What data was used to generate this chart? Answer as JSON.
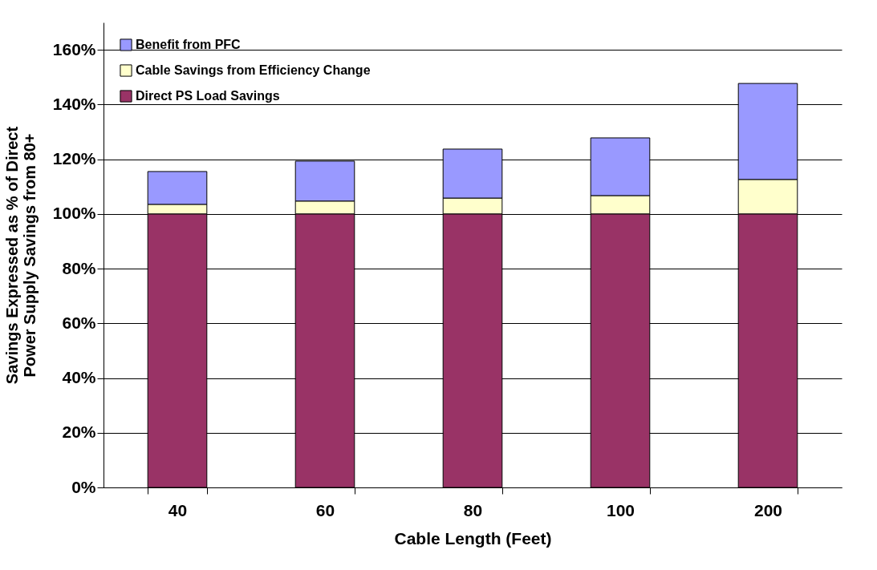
{
  "chart_data": {
    "type": "bar",
    "stacked": true,
    "xlabel": "Cable Length (Feet)",
    "ylabel": "Savings Expressed as % of Direct Power Supply Savings from 80+",
    "categories": [
      "40",
      "60",
      "80",
      "100",
      "200"
    ],
    "series": [
      {
        "name": "Direct PS Load Savings",
        "color": "#993366",
        "values": [
          100,
          100,
          100,
          100,
          100
        ]
      },
      {
        "name": "Cable Savings from Efficiency Change",
        "color": "#ffffcc",
        "values": [
          3.5,
          4.7,
          5.8,
          6.7,
          12.6
        ]
      },
      {
        "name": "Benefit from PFC",
        "color": "#9999ff",
        "values": [
          12,
          14.6,
          17.9,
          21.1,
          35.1
        ]
      }
    ],
    "ylim": [
      0,
      170
    ],
    "yticks": [
      {
        "value": 0,
        "label": "0%"
      },
      {
        "value": 20,
        "label": "20%"
      },
      {
        "value": 40,
        "label": "40%"
      },
      {
        "value": 60,
        "label": "60%"
      },
      {
        "value": 80,
        "label": "80%"
      },
      {
        "value": 100,
        "label": "100%"
      },
      {
        "value": 120,
        "label": "120%"
      },
      {
        "value": 140,
        "label": "140%"
      },
      {
        "value": 160,
        "label": "160%"
      }
    ],
    "grid": "y",
    "legend": "top left"
  }
}
